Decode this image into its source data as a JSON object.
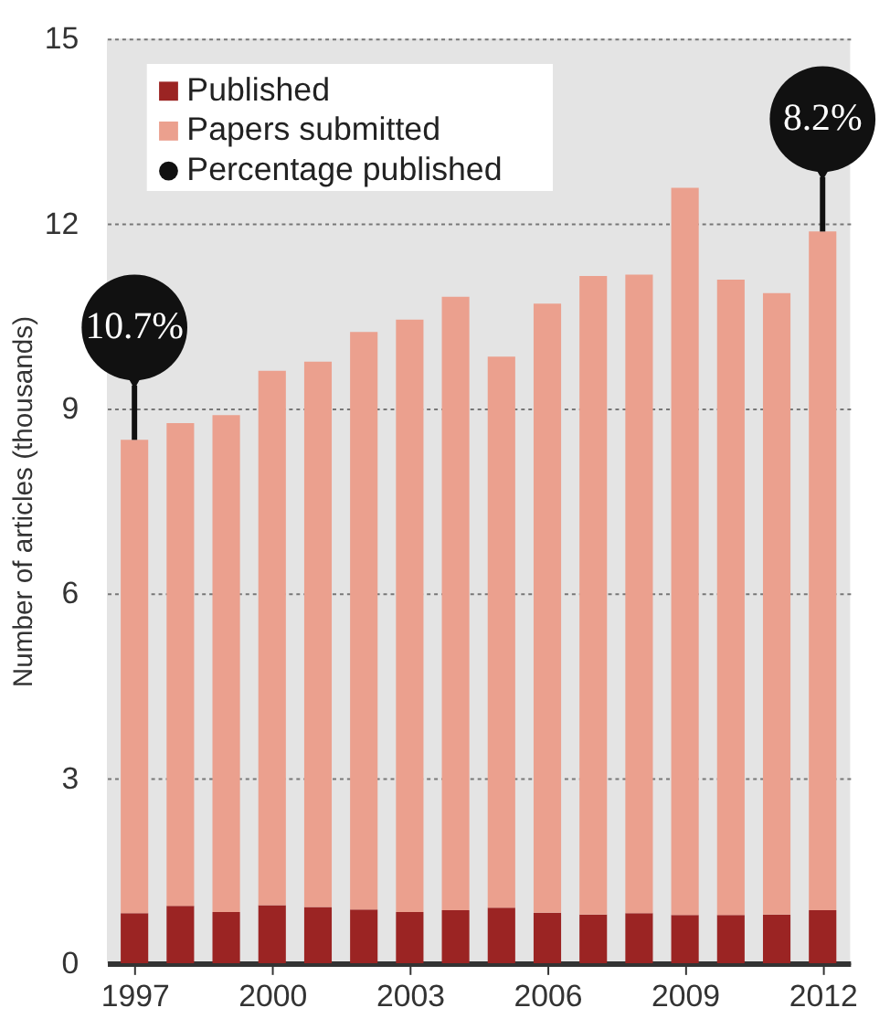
{
  "chart_data": {
    "type": "bar",
    "stacked": true,
    "ylabel": "Number of articles (thousands)",
    "categories": [
      "1997",
      null,
      null,
      "2000",
      null,
      null,
      "2003",
      null,
      null,
      "2006",
      null,
      null,
      "2009",
      null,
      null,
      "2012"
    ],
    "series": [
      {
        "name": "Published",
        "color": "#9b2423",
        "values": [
          0.81,
          0.93,
          0.83,
          0.94,
          0.91,
          0.87,
          0.83,
          0.86,
          0.9,
          0.82,
          0.79,
          0.81,
          0.78,
          0.78,
          0.79,
          0.86
        ]
      },
      {
        "name": "Papers submitted",
        "color": "#eba08e",
        "values": [
          7.68,
          7.83,
          8.06,
          8.67,
          8.85,
          9.37,
          9.61,
          9.95,
          8.94,
          9.88,
          10.36,
          10.36,
          11.8,
          10.31,
          10.08,
          11.01
        ]
      },
      {
        "name": "Percentage published",
        "type": "scatter",
        "color": "#111111",
        "values": [
          null,
          null,
          null,
          null,
          null,
          null,
          null,
          null,
          null,
          null,
          null,
          null,
          null,
          null,
          null,
          null
        ]
      }
    ],
    "annotations": [
      {
        "text": "10.7%",
        "x": "1997",
        "y": 8.49
      },
      {
        "text": "8.2%",
        "x": "2012",
        "y": 11.87
      }
    ],
    "ylim": [
      0,
      15
    ],
    "yticks": [
      0,
      3,
      6,
      9,
      12,
      15
    ],
    "grid": "y",
    "legend": "top left",
    "marker": "circle"
  }
}
